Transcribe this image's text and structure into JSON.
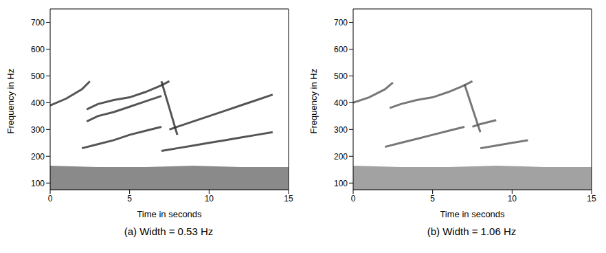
{
  "chart_data": [
    {
      "type": "line",
      "title": "(a) Width = 0.53 Hz",
      "x_label": "Time in seconds",
      "y_label": "Frequency in Hz",
      "xlim": [
        0,
        15
      ],
      "xticks": [
        0,
        5,
        10,
        15
      ],
      "ylim": [
        75,
        750
      ],
      "yticks": [
        100,
        200,
        300,
        400,
        500,
        600,
        700
      ],
      "color": "#2a2a2a",
      "series": [
        {
          "type": "area",
          "x": [
            0,
            3,
            6,
            9,
            12,
            15
          ],
          "values": [
            165,
            160,
            160,
            165,
            160,
            160
          ]
        },
        {
          "type": "line",
          "x": [
            0,
            1,
            2,
            2.5
          ],
          "values": [
            390,
            415,
            450,
            480
          ]
        },
        {
          "type": "line",
          "x": [
            2.3,
            3,
            4,
            5,
            6,
            7,
            7.5
          ],
          "values": [
            375,
            395,
            410,
            420,
            440,
            465,
            480
          ]
        },
        {
          "type": "line",
          "x": [
            2.3,
            3,
            4,
            5,
            6,
            7
          ],
          "values": [
            330,
            350,
            365,
            385,
            405,
            425
          ]
        },
        {
          "type": "line",
          "x": [
            2,
            3,
            4,
            5,
            6,
            7
          ],
          "values": [
            230,
            245,
            260,
            280,
            295,
            310
          ]
        },
        {
          "type": "line",
          "x": [
            7,
            7.5,
            8
          ],
          "values": [
            480,
            380,
            280
          ]
        },
        {
          "type": "line",
          "x": [
            7.5,
            8,
            9,
            10,
            11,
            12,
            13,
            14
          ],
          "values": [
            300,
            310,
            330,
            350,
            370,
            390,
            410,
            430
          ]
        },
        {
          "type": "line",
          "x": [
            7,
            8,
            9,
            10,
            11,
            12,
            13,
            14
          ],
          "values": [
            220,
            230,
            240,
            250,
            260,
            270,
            280,
            290
          ]
        }
      ]
    },
    {
      "type": "line",
      "title": "(b) Width = 1.06 Hz",
      "x_label": "Time in seconds",
      "y_label": "Frequency in Hz",
      "xlim": [
        0,
        15
      ],
      "xticks": [
        0,
        5,
        10,
        15
      ],
      "ylim": [
        75,
        750
      ],
      "yticks": [
        100,
        200,
        300,
        400,
        500,
        600,
        700
      ],
      "color": "#555555",
      "series": [
        {
          "type": "area",
          "x": [
            0,
            3,
            6,
            9,
            12,
            15
          ],
          "values": [
            165,
            160,
            160,
            165,
            160,
            160
          ]
        },
        {
          "type": "line",
          "x": [
            0,
            1,
            2,
            2.5
          ],
          "values": [
            400,
            420,
            450,
            475
          ]
        },
        {
          "type": "line",
          "x": [
            2.3,
            3,
            4,
            5,
            6,
            7,
            7.5
          ],
          "values": [
            380,
            395,
            410,
            420,
            440,
            465,
            480
          ]
        },
        {
          "type": "line",
          "x": [
            2,
            3,
            4,
            5,
            6,
            7
          ],
          "values": [
            235,
            250,
            265,
            280,
            295,
            310
          ]
        },
        {
          "type": "line",
          "x": [
            7,
            7.5,
            8
          ],
          "values": [
            470,
            380,
            290
          ]
        },
        {
          "type": "line",
          "x": [
            7.5,
            8,
            9
          ],
          "values": [
            310,
            320,
            335
          ]
        },
        {
          "type": "line",
          "x": [
            8,
            9,
            10,
            11
          ],
          "values": [
            230,
            240,
            250,
            260
          ]
        }
      ]
    }
  ]
}
